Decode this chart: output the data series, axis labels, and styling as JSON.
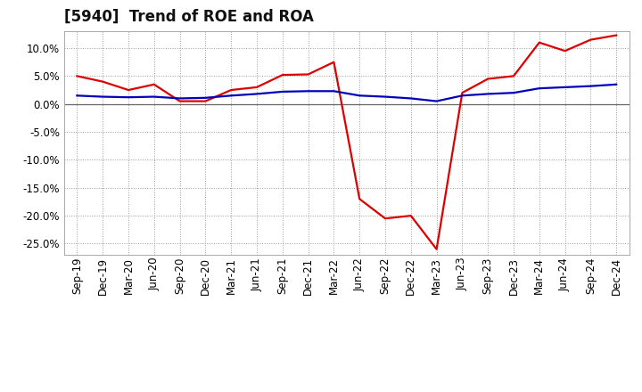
{
  "title": "[5940]  Trend of ROE and ROA",
  "x_labels": [
    "Sep-19",
    "Dec-19",
    "Mar-20",
    "Jun-20",
    "Sep-20",
    "Dec-20",
    "Mar-21",
    "Jun-21",
    "Sep-21",
    "Dec-21",
    "Mar-22",
    "Jun-22",
    "Sep-22",
    "Dec-22",
    "Mar-23",
    "Jun-23",
    "Sep-23",
    "Dec-23",
    "Mar-24",
    "Jun-24",
    "Sep-24",
    "Dec-24"
  ],
  "roe": [
    5.0,
    4.0,
    2.5,
    3.5,
    0.5,
    0.5,
    2.5,
    3.0,
    5.2,
    5.3,
    7.5,
    -17.0,
    -20.5,
    -20.0,
    -26.0,
    2.0,
    4.5,
    5.0,
    11.0,
    9.5,
    11.5,
    12.3
  ],
  "roa": [
    1.5,
    1.3,
    1.2,
    1.3,
    1.0,
    1.1,
    1.5,
    1.8,
    2.2,
    2.3,
    2.3,
    1.5,
    1.3,
    1.0,
    0.5,
    1.5,
    1.8,
    2.0,
    2.8,
    3.0,
    3.2,
    3.5
  ],
  "roe_color": "#dd0000",
  "roa_color": "#0000bb",
  "bg_color": "#ffffff",
  "plot_bg_color": "#ffffff",
  "grid_color": "#999999",
  "ylim": [
    -27,
    13
  ],
  "yticks": [
    -25.0,
    -20.0,
    -15.0,
    -10.0,
    -5.0,
    0.0,
    5.0,
    10.0
  ],
  "line_width": 1.6,
  "title_fontsize": 12,
  "tick_fontsize": 8.5
}
